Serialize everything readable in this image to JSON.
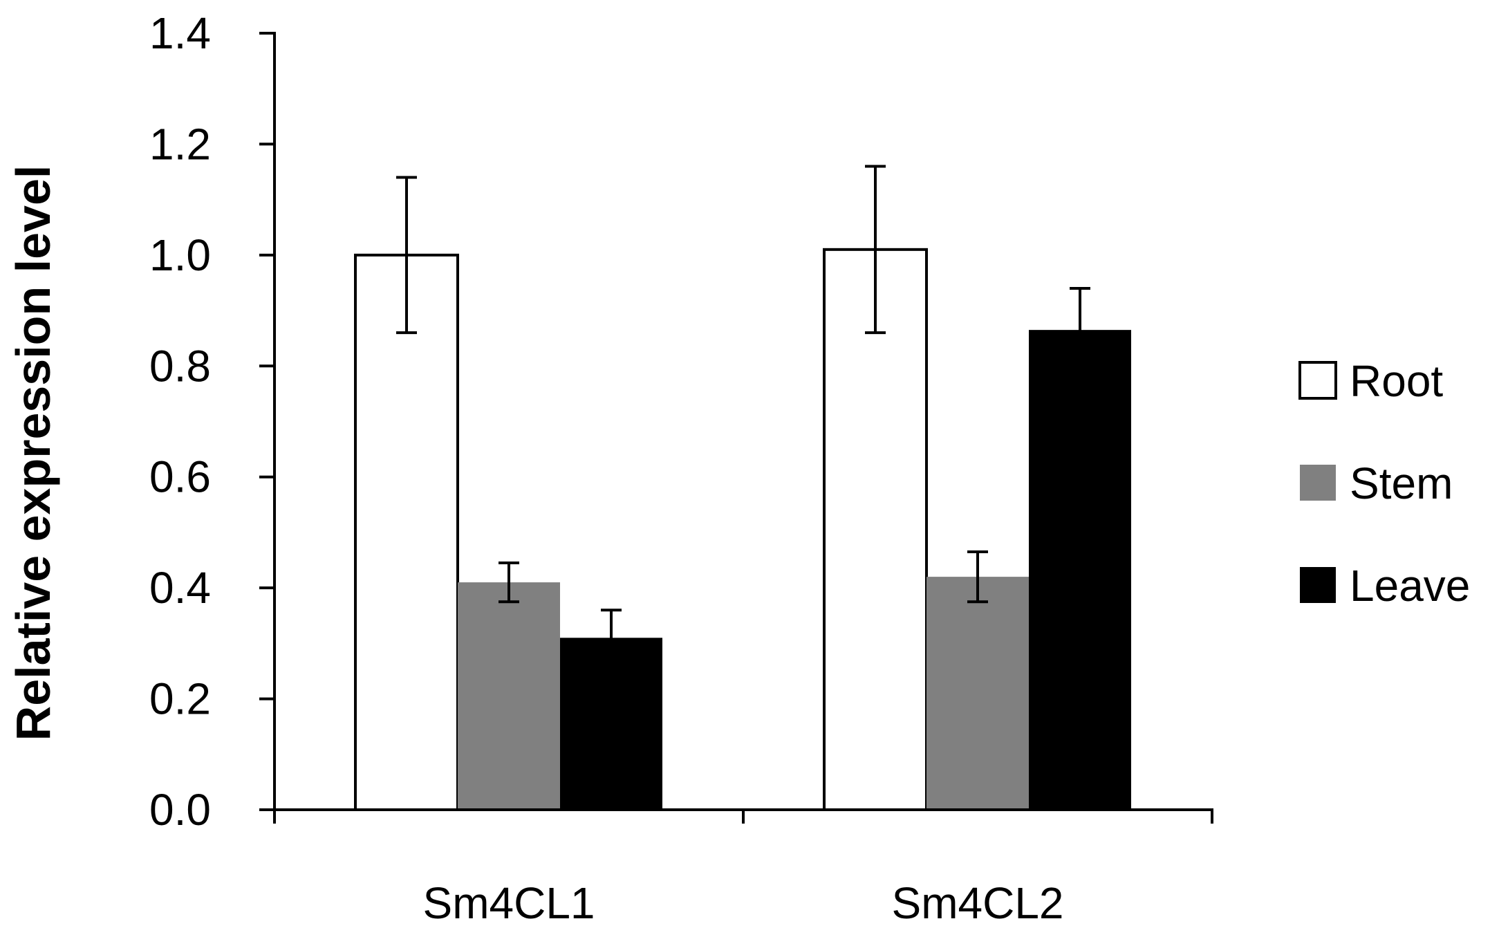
{
  "chart_data": {
    "type": "bar",
    "categories": [
      "Sm4CL1",
      "Sm4CL2"
    ],
    "series": [
      {
        "name": "Root",
        "color": "#ffffff",
        "values": [
          1.0,
          1.01
        ],
        "errors": [
          0.14,
          0.15
        ]
      },
      {
        "name": "Stem",
        "color": "#808080",
        "values": [
          0.41,
          0.42
        ],
        "errors": [
          0.035,
          0.045
        ]
      },
      {
        "name": "Leave",
        "color": "#000000",
        "values": [
          0.31,
          0.865
        ],
        "errors": [
          0.05,
          0.075
        ]
      }
    ],
    "ylabel": "Relative expression  level",
    "ylim": [
      0,
      1.4
    ],
    "yticks": [
      "0.0",
      "0.2",
      "0.4",
      "0.6",
      "0.8",
      "1.0",
      "1.2",
      "1.4"
    ],
    "ytick_values": [
      0,
      0.2,
      0.4,
      0.6,
      0.8,
      1.0,
      1.2,
      1.4
    ],
    "grid": false,
    "legend_position": "right"
  }
}
